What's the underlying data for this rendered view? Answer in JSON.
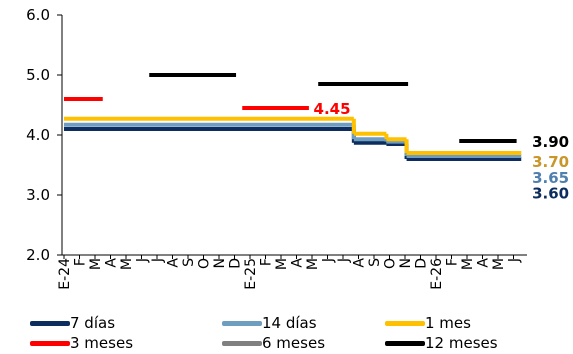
{
  "chart_data": {
    "type": "line",
    "ylim": [
      2.0,
      6.0
    ],
    "yticks": [
      "2.0",
      "3.0",
      "4.0",
      "5.0",
      "6.0"
    ],
    "x_tick_labels": [
      "E-24",
      "F",
      "M",
      "A",
      "M",
      "J",
      "J",
      "A",
      "S",
      "O",
      "N",
      "D",
      "E-25",
      "F",
      "M",
      "A",
      "M",
      "J",
      "J",
      "A",
      "S",
      "O",
      "N",
      "D",
      "E-26",
      "F",
      "M",
      "A",
      "M",
      "J"
    ],
    "series": [
      {
        "name": "7 días",
        "color": "#0d2d5e",
        "segments": [
          {
            "x": [
              0,
              18.7
            ],
            "y": [
              4.1,
              4.1
            ]
          },
          {
            "x": [
              18.7,
              20.8
            ],
            "y": [
              3.87,
              3.87
            ]
          },
          {
            "x": [
              20.8,
              22.1
            ],
            "y": [
              3.85,
              3.85
            ]
          },
          {
            "x": [
              22.1,
              29.5
            ],
            "y": [
              3.6,
              3.6
            ]
          }
        ]
      },
      {
        "name": "14 días",
        "color": "#6e9dc0",
        "segments": [
          {
            "x": [
              0,
              18.7
            ],
            "y": [
              4.17,
              4.17
            ]
          },
          {
            "x": [
              18.7,
              20.8
            ],
            "y": [
              3.93,
              3.93
            ]
          },
          {
            "x": [
              20.8,
              22.1
            ],
            "y": [
              3.89,
              3.89
            ]
          },
          {
            "x": [
              22.1,
              29.5
            ],
            "y": [
              3.65,
              3.65
            ]
          }
        ]
      },
      {
        "name": "1 mes",
        "color": "#ffc000",
        "segments": [
          {
            "x": [
              0,
              18.7
            ],
            "y": [
              4.27,
              4.27
            ]
          },
          {
            "x": [
              18.7,
              20.8
            ],
            "y": [
              4.02,
              4.02
            ]
          },
          {
            "x": [
              20.8,
              22.1
            ],
            "y": [
              3.93,
              3.93
            ]
          },
          {
            "x": [
              22.1,
              29.5
            ],
            "y": [
              3.7,
              3.7
            ]
          }
        ]
      },
      {
        "name": "3 meses",
        "color": "#ff0000",
        "segments": [
          {
            "x": [
              0,
              2.5
            ],
            "y": [
              4.6,
              4.6
            ]
          },
          {
            "x": [
              11.5,
              15.8
            ],
            "y": [
              4.45,
              4.45
            ]
          }
        ]
      },
      {
        "name": "6 meses",
        "color": "#808080",
        "segments": []
      },
      {
        "name": "12 meses",
        "color": "#000000",
        "segments": [
          {
            "x": [
              5.5,
              11.1
            ],
            "y": [
              5.0,
              5.0
            ]
          },
          {
            "x": [
              16.4,
              22.2
            ],
            "y": [
              4.85,
              4.85
            ]
          },
          {
            "x": [
              25.5,
              29.2
            ],
            "y": [
              3.9,
              3.9
            ]
          }
        ]
      }
    ],
    "annotations": [
      {
        "text": "4.45",
        "color": "#ff0000",
        "x": 16.1,
        "y": 4.45
      },
      {
        "text": "3.90",
        "color": "#000000",
        "x": 30.2,
        "y": 3.9
      },
      {
        "text": "3.70",
        "color": "#c9962a",
        "x": 30.2,
        "y": 3.57
      },
      {
        "text": "3.65",
        "color": "#4f7fae",
        "x": 30.2,
        "y": 3.3
      },
      {
        "text": "3.60",
        "color": "#0d2d5e",
        "x": 30.2,
        "y": 3.04
      }
    ],
    "legend": {
      "position": "bottom",
      "items": [
        "7 días",
        "14 días",
        "1 mes",
        "3 meses",
        "6 meses",
        "12 meses"
      ]
    }
  }
}
